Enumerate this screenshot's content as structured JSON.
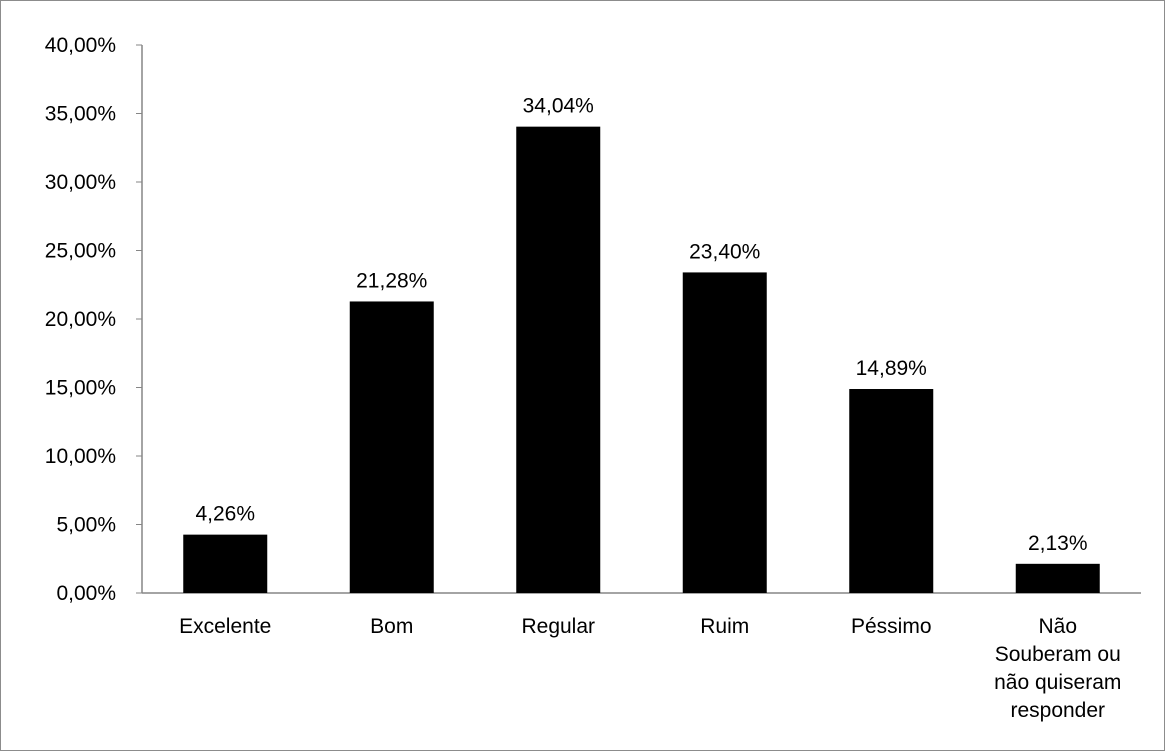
{
  "chart_data": {
    "type": "bar",
    "categories": [
      "Excelente",
      "Bom",
      "Regular",
      "Ruim",
      "Péssimo",
      "Não Souberam ou não quiseram responder"
    ],
    "category_lines": [
      [
        "Excelente"
      ],
      [
        "Bom"
      ],
      [
        "Regular"
      ],
      [
        "Ruim"
      ],
      [
        "Péssimo"
      ],
      [
        "Não",
        "Souberam ou",
        "não quiseram",
        "responder"
      ]
    ],
    "values": [
      4.26,
      21.28,
      34.04,
      23.4,
      14.89,
      2.13
    ],
    "data_labels": [
      "4,26%",
      "21,28%",
      "34,04%",
      "23,40%",
      "14,89%",
      "2,13%"
    ],
    "yticks": [
      "0,00%",
      "5,00%",
      "10,00%",
      "15,00%",
      "20,00%",
      "25,00%",
      "30,00%",
      "35,00%",
      "40,00%"
    ],
    "ylim": [
      0,
      40
    ],
    "bar_color": "#000000",
    "grid": false,
    "legend": "none",
    "title": "",
    "xlabel": "",
    "ylabel": ""
  }
}
